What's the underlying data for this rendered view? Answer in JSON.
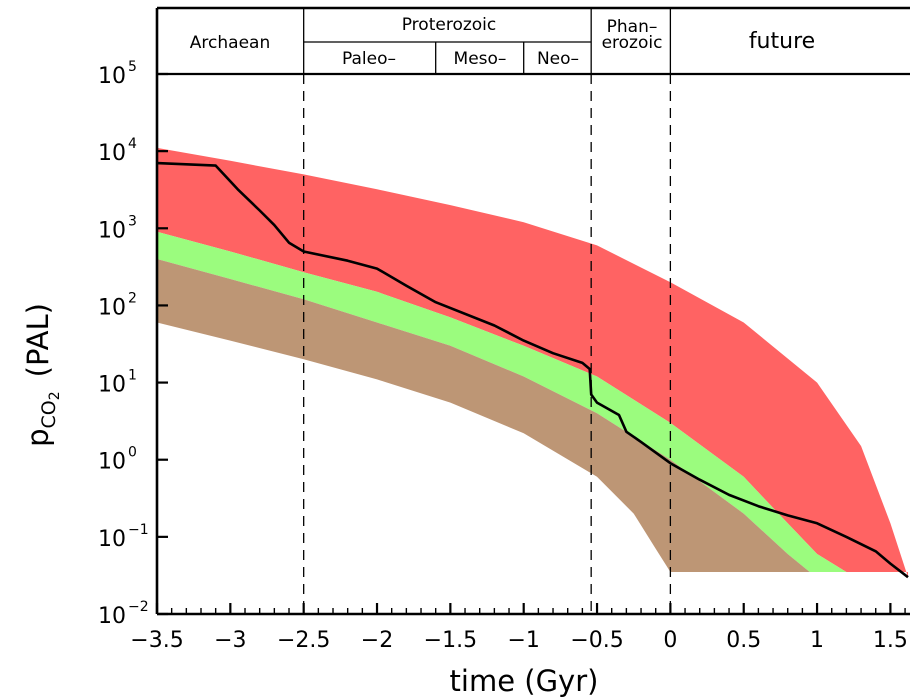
{
  "colors": {
    "upper_band": "#ff6363",
    "middle_band": "#9bfc7e",
    "lower_band": "#bd9675",
    "curve": "#000000"
  },
  "eras": {
    "archaean": "Archaean",
    "proterozoic": "Proterozoic",
    "paleo": "Paleo–",
    "meso": "Meso–",
    "neo": "Neo–",
    "phan_1": "Phan–",
    "phan_2": "erozoic",
    "future": "future"
  },
  "chart_data": {
    "type": "area",
    "title": "",
    "xlabel": "time (Gyr)",
    "ylabel_base": "p",
    "ylabel_sub": "CO",
    "ylabel_subsub": "2",
    "ylabel_unit": "(PAL)",
    "xlim": [
      -3.5,
      1.62
    ],
    "ylim_log10": [
      -2,
      5
    ],
    "y_scale": "log",
    "x_tick_values": [
      -3.5,
      -3,
      -2.5,
      -2,
      -1.5,
      -1,
      -0.5,
      0,
      0.5,
      1,
      1.5
    ],
    "x_tick_labels": [
      "−3.5",
      "−3",
      "−2.5",
      "−2",
      "−1.5",
      "−1",
      "−0.5",
      "0",
      "0.5",
      "1",
      "1.5"
    ],
    "y_tick_exponents": [
      5,
      4,
      3,
      2,
      1,
      0,
      -1,
      -2
    ],
    "y_tick_base": "10",
    "y_tick_exp_labels": [
      "5",
      "4",
      "3",
      "2",
      "1",
      "0",
      "−1",
      "−2"
    ],
    "era_boundaries": [
      -2.5,
      -0.54,
      0
    ],
    "sub_era_boundaries": [
      -1.6,
      -1.0
    ],
    "series": [
      {
        "role": "upper band (red)",
        "upper": [
          [
            -3.5,
            11000
          ],
          [
            -3,
            7500
          ],
          [
            -2.5,
            5000
          ],
          [
            -2,
            3200
          ],
          [
            -1.5,
            2000
          ],
          [
            -1,
            1200
          ],
          [
            -0.5,
            600
          ],
          [
            0,
            200
          ],
          [
            0.5,
            60
          ],
          [
            1,
            10
          ],
          [
            1.3,
            1.5
          ],
          [
            1.5,
            0.15
          ],
          [
            1.62,
            0.03
          ]
        ],
        "lower": [
          [
            -3.5,
            900
          ],
          [
            -3,
            500
          ],
          [
            -2.5,
            270
          ],
          [
            -2,
            150
          ],
          [
            -1.5,
            70
          ],
          [
            -1,
            30
          ],
          [
            -0.5,
            12
          ],
          [
            0,
            3
          ],
          [
            0.5,
            0.6
          ],
          [
            0.8,
            0.15
          ],
          [
            1,
            0.06
          ],
          [
            1.2,
            0.035
          ],
          [
            1.62,
            0.035
          ]
        ]
      },
      {
        "role": "middle band (green)",
        "upper": [
          [
            -3.5,
            900
          ],
          [
            -3,
            500
          ],
          [
            -2.5,
            270
          ],
          [
            -2,
            150
          ],
          [
            -1.5,
            70
          ],
          [
            -1,
            30
          ],
          [
            -0.5,
            12
          ],
          [
            0,
            3
          ],
          [
            0.5,
            0.6
          ],
          [
            0.8,
            0.15
          ],
          [
            1,
            0.06
          ],
          [
            1.2,
            0.035
          ],
          [
            1.32,
            0.035
          ]
        ],
        "lower": [
          [
            -3.5,
            400
          ],
          [
            -3,
            220
          ],
          [
            -2.5,
            120
          ],
          [
            -2,
            60
          ],
          [
            -1.5,
            30
          ],
          [
            -1,
            12
          ],
          [
            -0.5,
            4
          ],
          [
            0,
            1
          ],
          [
            0.5,
            0.2
          ],
          [
            0.8,
            0.06
          ],
          [
            0.95,
            0.035
          ],
          [
            1.32,
            0.035
          ]
        ]
      },
      {
        "role": "lower band (brown)",
        "upper": [
          [
            -3.5,
            400
          ],
          [
            -3,
            220
          ],
          [
            -2.5,
            120
          ],
          [
            -2,
            60
          ],
          [
            -1.5,
            30
          ],
          [
            -1,
            12
          ],
          [
            -0.5,
            4
          ],
          [
            0,
            1
          ],
          [
            0.5,
            0.2
          ],
          [
            0.8,
            0.06
          ],
          [
            0.95,
            0.035
          ],
          [
            1.05,
            0.035
          ]
        ],
        "lower": [
          [
            -3.5,
            60
          ],
          [
            -3,
            35
          ],
          [
            -2.5,
            20
          ],
          [
            -2,
            11
          ],
          [
            -1.5,
            5.5
          ],
          [
            -1,
            2.2
          ],
          [
            -0.5,
            0.6
          ],
          [
            -0.25,
            0.2
          ],
          [
            -0.1,
            0.07
          ],
          [
            0,
            0.035
          ],
          [
            1.05,
            0.035
          ]
        ]
      },
      {
        "role": "estimate curve (black)",
        "points": [
          [
            -3.5,
            7000
          ],
          [
            -3.1,
            6500
          ],
          [
            -2.95,
            3200
          ],
          [
            -2.8,
            1700
          ],
          [
            -2.7,
            1100
          ],
          [
            -2.6,
            650
          ],
          [
            -2.5,
            500
          ],
          [
            -2.2,
            380
          ],
          [
            -2.0,
            300
          ],
          [
            -1.8,
            180
          ],
          [
            -1.6,
            110
          ],
          [
            -1.2,
            55
          ],
          [
            -1.0,
            35
          ],
          [
            -0.8,
            24
          ],
          [
            -0.6,
            18
          ],
          [
            -0.55,
            15
          ],
          [
            -0.54,
            7
          ],
          [
            -0.5,
            5.5
          ],
          [
            -0.35,
            3.8
          ],
          [
            -0.3,
            2.3
          ],
          [
            -0.2,
            1.7
          ],
          [
            0,
            0.9
          ],
          [
            0.2,
            0.55
          ],
          [
            0.4,
            0.35
          ],
          [
            0.6,
            0.25
          ],
          [
            0.8,
            0.19
          ],
          [
            1.0,
            0.15
          ],
          [
            1.2,
            0.1
          ],
          [
            1.4,
            0.065
          ],
          [
            1.5,
            0.045
          ],
          [
            1.62,
            0.03
          ]
        ]
      }
    ]
  }
}
